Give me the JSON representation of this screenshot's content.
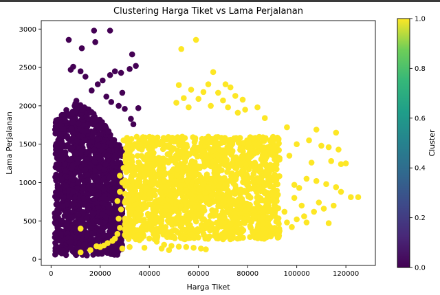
{
  "chart_data": {
    "type": "scatter",
    "title": "Clustering Harga Tiket vs Lama Perjalanan",
    "xlabel": "Harga Tiket",
    "ylabel": "Lama Perjalanan",
    "xlim": [
      -4000,
      132000
    ],
    "ylim": [
      -80,
      3110
    ],
    "xticks": [
      0,
      20000,
      40000,
      60000,
      80000,
      100000,
      120000
    ],
    "yticks": [
      0,
      500,
      1000,
      1500,
      2000,
      2500,
      3000
    ],
    "grid": false,
    "colorbar": {
      "label": "Cluster",
      "range": [
        0.0,
        1.0
      ],
      "ticks": [
        "0.0",
        "0.2",
        "0.4",
        "0.6",
        "0.8",
        "1.0"
      ],
      "colormap": "viridis"
    },
    "series": [
      {
        "cluster": 0,
        "color": "#440154",
        "dense_region": {
          "x": [
            0,
            30000
          ],
          "y": [
            50,
            1900
          ]
        },
        "outliers": [
          [
            7200,
            2860
          ],
          [
            17500,
            2980
          ],
          [
            24000,
            2980
          ],
          [
            12500,
            2750
          ],
          [
            18000,
            2830
          ],
          [
            33000,
            2670
          ],
          [
            34500,
            2520
          ],
          [
            32000,
            2480
          ],
          [
            28500,
            2430
          ],
          [
            26000,
            2450
          ],
          [
            24000,
            2400
          ],
          [
            21000,
            2330
          ],
          [
            19000,
            2280
          ],
          [
            16500,
            2200
          ],
          [
            22500,
            2120
          ],
          [
            24500,
            2050
          ],
          [
            27500,
            2000
          ],
          [
            30000,
            1960
          ],
          [
            35500,
            1970
          ],
          [
            29000,
            2170
          ],
          [
            12000,
            2450
          ],
          [
            14000,
            2380
          ],
          [
            9000,
            2510
          ],
          [
            8000,
            2470
          ],
          [
            32500,
            1830
          ],
          [
            33500,
            1760
          ]
        ]
      },
      {
        "cluster": 1,
        "color": "#fde725",
        "dense_region": {
          "x": [
            30000,
            93000
          ],
          "y": [
            260,
            1600
          ]
        },
        "outliers": [
          [
            59000,
            2860
          ],
          [
            53000,
            2740
          ],
          [
            66000,
            2440
          ],
          [
            52000,
            2270
          ],
          [
            64000,
            2280
          ],
          [
            71000,
            2280
          ],
          [
            73000,
            2240
          ],
          [
            57000,
            2210
          ],
          [
            62000,
            2180
          ],
          [
            68000,
            2170
          ],
          [
            75000,
            2130
          ],
          [
            54000,
            2100
          ],
          [
            60000,
            2090
          ],
          [
            70000,
            2070
          ],
          [
            78000,
            2080
          ],
          [
            51000,
            2040
          ],
          [
            65000,
            2000
          ],
          [
            72000,
            1980
          ],
          [
            56000,
            1980
          ],
          [
            84000,
            1980
          ],
          [
            76000,
            1910
          ],
          [
            79000,
            1950
          ],
          [
            87000,
            1840
          ],
          [
            96000,
            1720
          ],
          [
            108000,
            1690
          ],
          [
            116000,
            1650
          ],
          [
            105000,
            1550
          ],
          [
            100000,
            1500
          ],
          [
            110000,
            1480
          ],
          [
            113000,
            1460
          ],
          [
            117000,
            1430
          ],
          [
            120000,
            1250
          ],
          [
            118000,
            1240
          ],
          [
            114000,
            1280
          ],
          [
            106000,
            1260
          ],
          [
            97000,
            1350
          ],
          [
            104000,
            1050
          ],
          [
            108000,
            1020
          ],
          [
            99000,
            970
          ],
          [
            101000,
            930
          ],
          [
            112000,
            980
          ],
          [
            116000,
            940
          ],
          [
            118000,
            880
          ],
          [
            122000,
            810
          ],
          [
            115000,
            700
          ],
          [
            111000,
            660
          ],
          [
            107000,
            620
          ],
          [
            103000,
            560
          ],
          [
            104000,
            480
          ],
          [
            96000,
            480
          ],
          [
            98000,
            420
          ],
          [
            90000,
            400
          ],
          [
            93000,
            370
          ],
          [
            100000,
            520
          ],
          [
            109000,
            740
          ],
          [
            125000,
            810
          ],
          [
            113000,
            470
          ],
          [
            95000,
            620
          ],
          [
            102000,
            700
          ],
          [
            99000,
            800
          ],
          [
            12000,
            90
          ],
          [
            16000,
            120
          ],
          [
            20000,
            160
          ],
          [
            23000,
            210
          ],
          [
            26000,
            270
          ],
          [
            27000,
            330
          ],
          [
            28000,
            410
          ],
          [
            27500,
            530
          ],
          [
            28500,
            650
          ],
          [
            27000,
            760
          ],
          [
            28000,
            880
          ],
          [
            29000,
            1000
          ],
          [
            28000,
            1090
          ],
          [
            29500,
            1190
          ],
          [
            30500,
            1290
          ],
          [
            31000,
            1380
          ],
          [
            30500,
            1450
          ],
          [
            29500,
            1550
          ],
          [
            33000,
            1020
          ],
          [
            34000,
            1100
          ],
          [
            32000,
            920
          ],
          [
            35000,
            820
          ],
          [
            31500,
            730
          ],
          [
            32500,
            600
          ],
          [
            31000,
            520
          ],
          [
            33500,
            460
          ],
          [
            35000,
            380
          ],
          [
            37500,
            320
          ],
          [
            40000,
            270
          ],
          [
            43000,
            230
          ],
          [
            46000,
            190
          ],
          [
            49000,
            175
          ],
          [
            52000,
            165
          ],
          [
            55000,
            160
          ],
          [
            58000,
            150
          ],
          [
            61000,
            140
          ],
          [
            63000,
            130
          ],
          [
            45000,
            140
          ],
          [
            48000,
            120
          ],
          [
            38000,
            150
          ],
          [
            32000,
            160
          ],
          [
            29000,
            140
          ],
          [
            12000,
            400
          ],
          [
            18500,
            170
          ],
          [
            25000,
            240
          ],
          [
            36000,
            250
          ],
          [
            34000,
            300
          ],
          [
            21500,
            180
          ]
        ]
      }
    ]
  }
}
